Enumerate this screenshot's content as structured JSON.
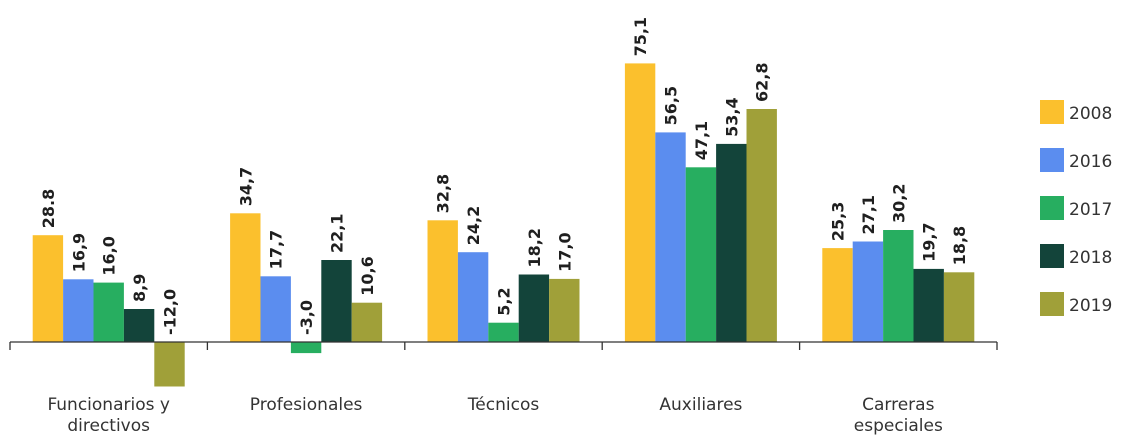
{
  "chart_data": {
    "type": "bar",
    "categories": [
      [
        "Funcionarios y",
        "directivos"
      ],
      [
        "Profesionales"
      ],
      [
        "Técnicos"
      ],
      [
        "Auxiliares"
      ],
      [
        "Carreras",
        "especiales"
      ]
    ],
    "series": [
      {
        "name": "2008",
        "color": "#FBC02D",
        "values": [
          28.8,
          34.7,
          32.8,
          75.1,
          25.3
        ],
        "labels": [
          "28.8",
          "34,7",
          "32,8",
          "75,1",
          "25,3"
        ]
      },
      {
        "name": "2016",
        "color": "#5B8DEF",
        "values": [
          16.9,
          17.7,
          24.2,
          56.5,
          27.1
        ],
        "labels": [
          "16,9",
          "17,7",
          "24,2",
          "56,5",
          "27,1"
        ]
      },
      {
        "name": "2017",
        "color": "#27AE60",
        "values": [
          16.0,
          -3.0,
          5.2,
          47.1,
          30.2
        ],
        "labels": [
          "16,0",
          "-3,0",
          "5,2",
          "47,1",
          "30,2"
        ]
      },
      {
        "name": "2018",
        "color": "#13443A",
        "values": [
          8.9,
          22.1,
          18.2,
          53.4,
          19.7
        ],
        "labels": [
          "8,9",
          "22,1",
          "18,2",
          "53,4",
          "19,7"
        ]
      },
      {
        "name": "2019",
        "color": "#A0A039",
        "values": [
          -12.0,
          10.6,
          17.0,
          62.8,
          18.8
        ],
        "labels": [
          "-12,0",
          "10,6",
          "17,0",
          "62,8",
          "18,8"
        ]
      }
    ],
    "title": "",
    "xlabel": "",
    "ylabel": "",
    "ylim": [
      -12,
      80
    ],
    "grid": false,
    "legend_position": "right"
  }
}
